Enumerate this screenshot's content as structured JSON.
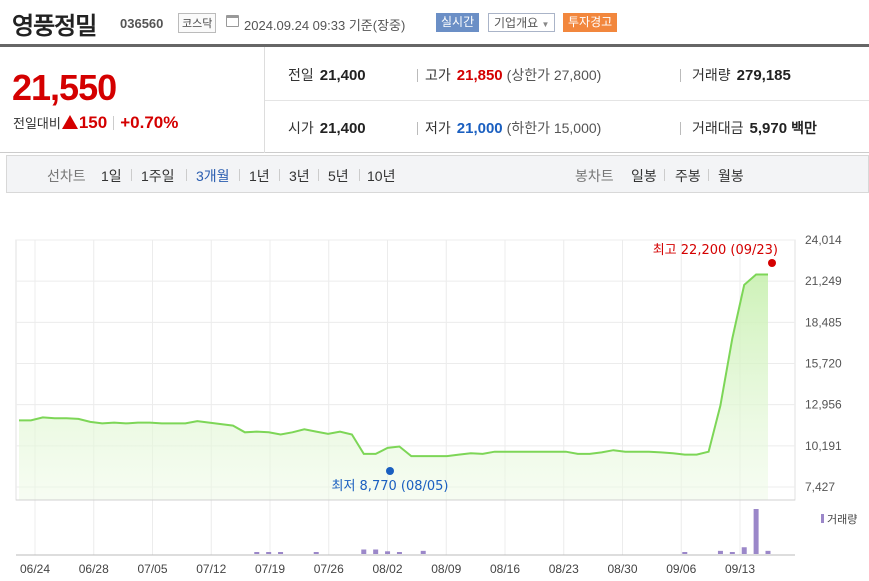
{
  "header": {
    "name": "영풍정밀",
    "code": "036560",
    "market": "코스닥",
    "datetime": "2024.09.24 09:33  기준(장중)",
    "badges": {
      "realtime": "실시간",
      "overview": "기업개요",
      "warning": "투자경고"
    }
  },
  "price": {
    "current": "21,550",
    "change_label": "전일대비",
    "change": "150",
    "change_pct": "+0.70%",
    "prev_label": "전일",
    "prev": "21,400",
    "open_label": "시가",
    "open": "21,400",
    "high_label": "고가",
    "high": "21,850",
    "upper_limit": "(상한가 27,800)",
    "low_label": "저가",
    "low": "21,000",
    "lower_limit": "(하한가 15,000)",
    "volume_label": "거래량",
    "volume": "279,185",
    "amount_label": "거래대금",
    "amount": "5,970",
    "amount_unit": "백만"
  },
  "tabs": {
    "line_label": "선차트",
    "periods": [
      "1일",
      "1주일",
      "3개월",
      "1년",
      "3년",
      "5년",
      "10년"
    ],
    "active_index": 2,
    "candle_label": "봉차트",
    "candles": [
      "일봉",
      "주봉",
      "월봉"
    ]
  },
  "colors": {
    "up": "#d40000",
    "down": "#1a5fc0",
    "line": "#7dd657",
    "volume": "#9b87c9"
  },
  "chart_data": {
    "type": "area",
    "y_ticks": [
      "24,014",
      "21,249",
      "18,485",
      "15,720",
      "12,956",
      "10,191",
      "7,427"
    ],
    "ylim": [
      7427,
      24014
    ],
    "x_ticks": [
      "06/24",
      "06/28",
      "07/05",
      "07/12",
      "07/19",
      "07/26",
      "08/02",
      "08/09",
      "08/16",
      "08/23",
      "08/30",
      "09/06",
      "09/13"
    ],
    "series": [
      {
        "values": [
          11900,
          11900,
          12100,
          12050,
          12050,
          12000,
          11800,
          11700,
          11750,
          11700,
          11750,
          11750,
          11700,
          11700,
          11700,
          11850,
          11750,
          11650,
          11550,
          11100,
          11150,
          11100,
          10950,
          11100,
          11300,
          11150,
          11000,
          11150,
          10950,
          9650,
          9650,
          10050,
          10150,
          9500,
          9500,
          9500,
          9500,
          9600,
          9700,
          9650,
          9800,
          9800,
          9800,
          9800,
          9800,
          9800,
          9800,
          9650,
          9650,
          9750,
          9900,
          9800,
          9800,
          9800,
          9750,
          9700,
          9600,
          9600,
          9800,
          12900,
          17400,
          21000,
          21700,
          21700
        ],
        "name": ""
      }
    ],
    "max_label": "최고 22,200 (09/23)",
    "min_label": "최저 8,770 (08/05)",
    "volume_label": "거래량",
    "volume": [
      0,
      0,
      0,
      0,
      0,
      0,
      0,
      0,
      0,
      0,
      0,
      0,
      0,
      0,
      0,
      0,
      0,
      0,
      0,
      0,
      0.02,
      0.02,
      0.02,
      0,
      0,
      0.02,
      0,
      0,
      0,
      0.1,
      0.1,
      0.06,
      0.04,
      0,
      0.07,
      0,
      0,
      0,
      0,
      0,
      0,
      0,
      0,
      0,
      0,
      0,
      0,
      0,
      0,
      0,
      0,
      0,
      0,
      0,
      0,
      0,
      0.03,
      0,
      0,
      0.07,
      0.04,
      0.15,
      1.0,
      0.07
    ]
  }
}
